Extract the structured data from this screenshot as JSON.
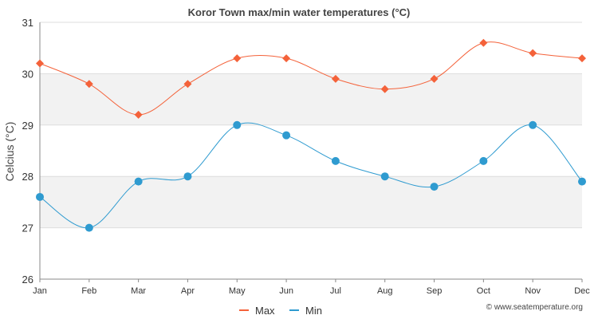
{
  "chart_data": {
    "type": "line",
    "title": "Koror Town max/min water temperatures (°C)",
    "xlabel": "",
    "ylabel": "Celcius (°C)",
    "categories": [
      "Jan",
      "Feb",
      "Mar",
      "Apr",
      "May",
      "Jun",
      "Jul",
      "Aug",
      "Sep",
      "Oct",
      "Nov",
      "Dec"
    ],
    "ylim": [
      26,
      31
    ],
    "yticks": [
      26,
      27,
      28,
      29,
      30,
      31
    ],
    "series": [
      {
        "name": "Max",
        "color": "#f4623a",
        "marker": "diamond",
        "values": [
          30.2,
          29.8,
          29.2,
          29.8,
          30.3,
          30.3,
          29.9,
          29.7,
          29.9,
          30.6,
          30.4,
          30.3
        ]
      },
      {
        "name": "Min",
        "color": "#2f9bd0",
        "marker": "circle",
        "values": [
          27.6,
          27.0,
          27.9,
          28.0,
          29.0,
          28.8,
          28.3,
          28.0,
          27.8,
          28.3,
          29.0,
          27.9
        ]
      }
    ],
    "legend": "bottom-center",
    "band_color": "#f2f2f2",
    "credit": "© www.seatemperature.org"
  }
}
